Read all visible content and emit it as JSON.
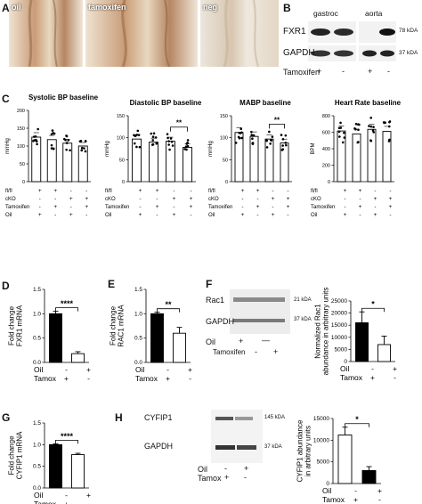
{
  "panels": {
    "A": "A",
    "B": "B",
    "C": "C",
    "D": "D",
    "E": "E",
    "F": "F",
    "G": "G",
    "H": "H"
  },
  "panel_a": {
    "images": [
      "oil",
      "tamoxifen",
      "neg"
    ]
  },
  "panel_b": {
    "col_labels": [
      "gastroc",
      "aorta"
    ],
    "rows": [
      "FXR1",
      "GAPDH"
    ],
    "kda": [
      "78 kDA",
      "37 kDA"
    ],
    "treatment_label": "Tamoxifen",
    "treatment_marks": [
      "+",
      "-",
      "+",
      "-"
    ]
  },
  "panel_c": {
    "row_labels": [
      "fl/fl",
      "cKO",
      "Tamoxifen",
      "Oil"
    ],
    "signs": [
      [
        "+",
        "+",
        "-",
        "-"
      ],
      [
        "-",
        "-",
        "+",
        "+"
      ],
      [
        "-",
        "+",
        "-",
        "+"
      ],
      [
        "+",
        "-",
        "+",
        "-"
      ]
    ],
    "sig": "**"
  },
  "panel_f_blot": {
    "rows": [
      "Rac1",
      "GAPDH"
    ],
    "kda": [
      "21 kDA",
      "37 kDA"
    ],
    "cond": [
      "Oil",
      "Tamoxifen"
    ],
    "oil_marks": [
      "+",
      "—"
    ],
    "tam_marks": [
      "-",
      "+"
    ]
  },
  "panel_h_blot": {
    "rows": [
      "CYFIP1",
      "GAPDH"
    ],
    "kda": [
      "145 kDA",
      "37 kDA"
    ],
    "cond": [
      "Oil",
      "Tamox"
    ],
    "oil_marks": [
      "-",
      "+"
    ],
    "tam_marks": [
      "+",
      "-"
    ]
  },
  "colors": {
    "bar_fill": "#ffffff",
    "bar_dark": "#000000"
  },
  "chart_data": [
    {
      "id": "C1",
      "type": "bar",
      "title": "Systolic BP baseline",
      "ylabel": "mmHg",
      "ylim": [
        0,
        200
      ],
      "yticks": [
        0,
        50,
        100,
        150,
        200
      ],
      "values": [
        125,
        118,
        108,
        100
      ]
    },
    {
      "id": "C2",
      "type": "bar",
      "title": "Diastolic BP baseline",
      "ylabel": "mmHg",
      "ylim": [
        0,
        150
      ],
      "yticks": [
        0,
        50,
        100,
        150
      ],
      "values": [
        97,
        90,
        92,
        78
      ],
      "sig": [
        2,
        3,
        "**"
      ]
    },
    {
      "id": "C3",
      "type": "bar",
      "title": "MABP baseline",
      "ylabel": "mmHg",
      "ylim": [
        0,
        150
      ],
      "yticks": [
        0,
        50,
        100,
        150
      ],
      "values": [
        112,
        103,
        97,
        88
      ],
      "sig": [
        2,
        3,
        "**"
      ]
    },
    {
      "id": "C4",
      "type": "bar",
      "title": "Heart Rate  baseline",
      "ylabel": "BPM",
      "ylim": [
        0,
        800
      ],
      "yticks": [
        0,
        200,
        400,
        600,
        800
      ],
      "values": [
        615,
        580,
        635,
        610
      ]
    },
    {
      "id": "D",
      "type": "bar",
      "ylabel": "Fold change\nFXR1 mRNA",
      "ylim": [
        0,
        1.5
      ],
      "yticks": [
        0.0,
        0.5,
        1.0,
        1.5
      ],
      "values": [
        1.0,
        0.18
      ],
      "errors": [
        0.05,
        0.04
      ],
      "fills": [
        "#000000",
        "#ffffff"
      ],
      "rows": [
        {
          "label": "Oil",
          "marks": [
            "-",
            "+"
          ]
        },
        {
          "label": "Tamox",
          "marks": [
            "+",
            "-"
          ]
        }
      ],
      "sig": "****"
    },
    {
      "id": "E",
      "type": "bar",
      "ylabel": "Fold change\nRAC1 mRNA",
      "ylim": [
        0,
        1.5
      ],
      "yticks": [
        0.0,
        0.5,
        1.0,
        1.5
      ],
      "values": [
        1.0,
        0.6
      ],
      "errors": [
        0.03,
        0.12
      ],
      "fills": [
        "#000000",
        "#ffffff"
      ],
      "rows": [
        {
          "label": "Oil",
          "marks": [
            "-",
            "+"
          ]
        },
        {
          "label": "Tamox",
          "marks": [
            "+",
            "-"
          ]
        }
      ],
      "sig": "**"
    },
    {
      "id": "F",
      "type": "bar",
      "ylabel": "Normalized Rac1\nabundance in arbitrary units",
      "ylim": [
        0,
        25000
      ],
      "yticks": [
        0,
        5000,
        10000,
        15000,
        20000,
        25000
      ],
      "values": [
        16000,
        7000
      ],
      "errors": [
        4500,
        3500
      ],
      "fills": [
        "#000000",
        "#ffffff"
      ],
      "rows": [
        {
          "label": "Oil",
          "marks": [
            "-",
            "+"
          ]
        },
        {
          "label": "Tamox",
          "marks": [
            "+",
            "-"
          ]
        }
      ],
      "sig": "*"
    },
    {
      "id": "G",
      "type": "bar",
      "ylabel": "Fold change\nCYFIP1 mRNA",
      "ylim": [
        0,
        1.5
      ],
      "yticks": [
        0.0,
        0.5,
        1.0,
        1.5
      ],
      "values": [
        1.0,
        0.77
      ],
      "errors": [
        0.02,
        0.03
      ],
      "fills": [
        "#000000",
        "#ffffff"
      ],
      "rows": [
        {
          "label": "Oil",
          "marks": [
            "-",
            "+"
          ]
        },
        {
          "label": "Tamox",
          "marks": [
            "+",
            "-"
          ]
        }
      ],
      "sig": "****"
    },
    {
      "id": "H",
      "type": "bar",
      "ylabel": "CYFIP1 abundance\nin arbitrary units",
      "ylim": [
        0,
        15000
      ],
      "yticks": [
        0,
        5000,
        10000,
        15000
      ],
      "values": [
        11200,
        3000
      ],
      "errors": [
        1800,
        900
      ],
      "fills": [
        "#ffffff",
        "#000000"
      ],
      "rows": [
        {
          "label": "Oil",
          "marks": [
            "-",
            "+"
          ]
        },
        {
          "label": "Tamox",
          "marks": [
            "+",
            "-"
          ]
        }
      ],
      "sig": "*"
    }
  ]
}
